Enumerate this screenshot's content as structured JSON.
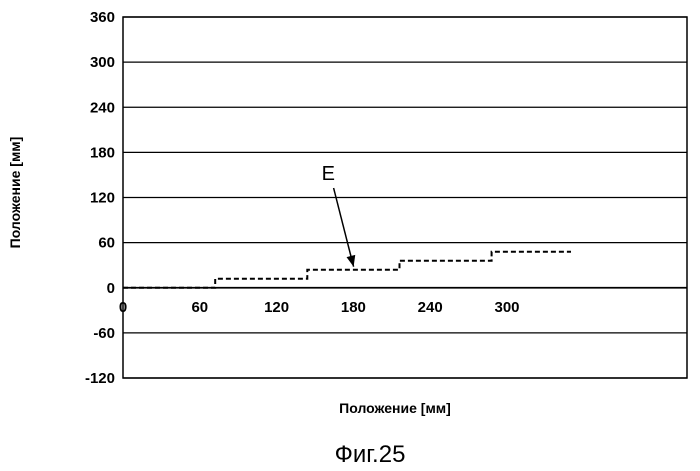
{
  "chart_data": {
    "type": "line",
    "xlabel": "Положение [мм]",
    "ylabel": "Положение [мм]",
    "caption": "Фиг.25",
    "xlim": [
      0,
      350
    ],
    "ylim": [
      -120,
      360
    ],
    "x_ticks": [
      0,
      60,
      120,
      180,
      240,
      300
    ],
    "y_ticks": [
      360,
      300,
      240,
      180,
      120,
      60,
      0,
      -60,
      -120
    ],
    "grid": "horizontal",
    "series": [
      {
        "line_style": "dashed",
        "color": "#000000",
        "points": [
          {
            "x": 0,
            "y": 0
          },
          {
            "x": 72,
            "y": 0
          },
          {
            "x": 72,
            "y": 12
          },
          {
            "x": 144,
            "y": 12
          },
          {
            "x": 144,
            "y": 24
          },
          {
            "x": 216,
            "y": 24
          },
          {
            "x": 216,
            "y": 36
          },
          {
            "x": 288,
            "y": 36
          },
          {
            "x": 288,
            "y": 48
          },
          {
            "x": 350,
            "y": 48
          }
        ]
      }
    ],
    "annotations": [
      {
        "text": "E",
        "x": 170,
        "y": 24
      }
    ]
  }
}
